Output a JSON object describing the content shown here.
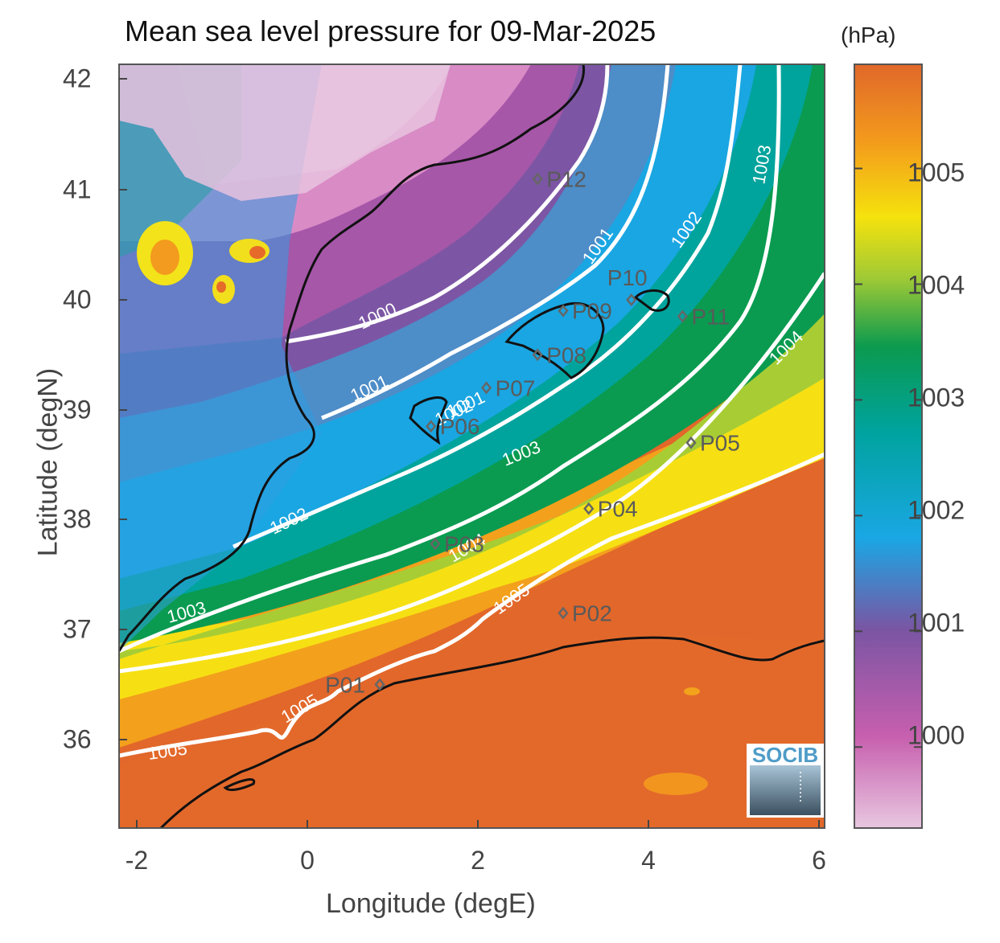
{
  "title": "Mean sea level pressure for 09-Mar-2025",
  "xlabel": "Longitude (degE)",
  "ylabel": "Latitude (degN)",
  "colorbar": {
    "unit": "(hPa)",
    "ticks": [
      "1005",
      "1004",
      "1003",
      "1002",
      "1001",
      "1000"
    ],
    "range": [
      999.3,
      1005.9
    ],
    "colors": [
      "#e8bedc",
      "#c45fae",
      "#7b53a2",
      "#1ea9e6",
      "#00a59b",
      "#0a9a4e",
      "#f4e10a",
      "#f3a21a",
      "#e06a27"
    ]
  },
  "x_ticks": [
    "-2",
    "0",
    "2",
    "4",
    "6"
  ],
  "y_ticks": [
    "42",
    "41",
    "40",
    "39",
    "38",
    "37",
    "36"
  ],
  "contour_labels": [
    "1000",
    "1001",
    "1001",
    "1001",
    "1002",
    "1002",
    "1002",
    "1003",
    "1003",
    "1003",
    "1004",
    "1004",
    "1005",
    "1005",
    "1005"
  ],
  "points": [
    {
      "label": "P01",
      "lon": 0.85,
      "lat": 36.5
    },
    {
      "label": "P02",
      "lon": 3.0,
      "lat": 37.15
    },
    {
      "label": "P03",
      "lon": 1.5,
      "lat": 37.78
    },
    {
      "label": "P04",
      "lon": 3.3,
      "lat": 38.1
    },
    {
      "label": "P05",
      "lon": 4.5,
      "lat": 38.7
    },
    {
      "label": "P06",
      "lon": 1.45,
      "lat": 38.85
    },
    {
      "label": "P07",
      "lon": 2.1,
      "lat": 39.2
    },
    {
      "label": "P08",
      "lon": 2.7,
      "lat": 39.5
    },
    {
      "label": "P09",
      "lon": 3.0,
      "lat": 39.9
    },
    {
      "label": "P10",
      "lon": 3.8,
      "lat": 40.0
    },
    {
      "label": "P11",
      "lon": 4.4,
      "lat": 39.85
    },
    {
      "label": "P12",
      "lon": 2.7,
      "lat": 41.1
    }
  ],
  "logo_text": "SOCIB"
}
